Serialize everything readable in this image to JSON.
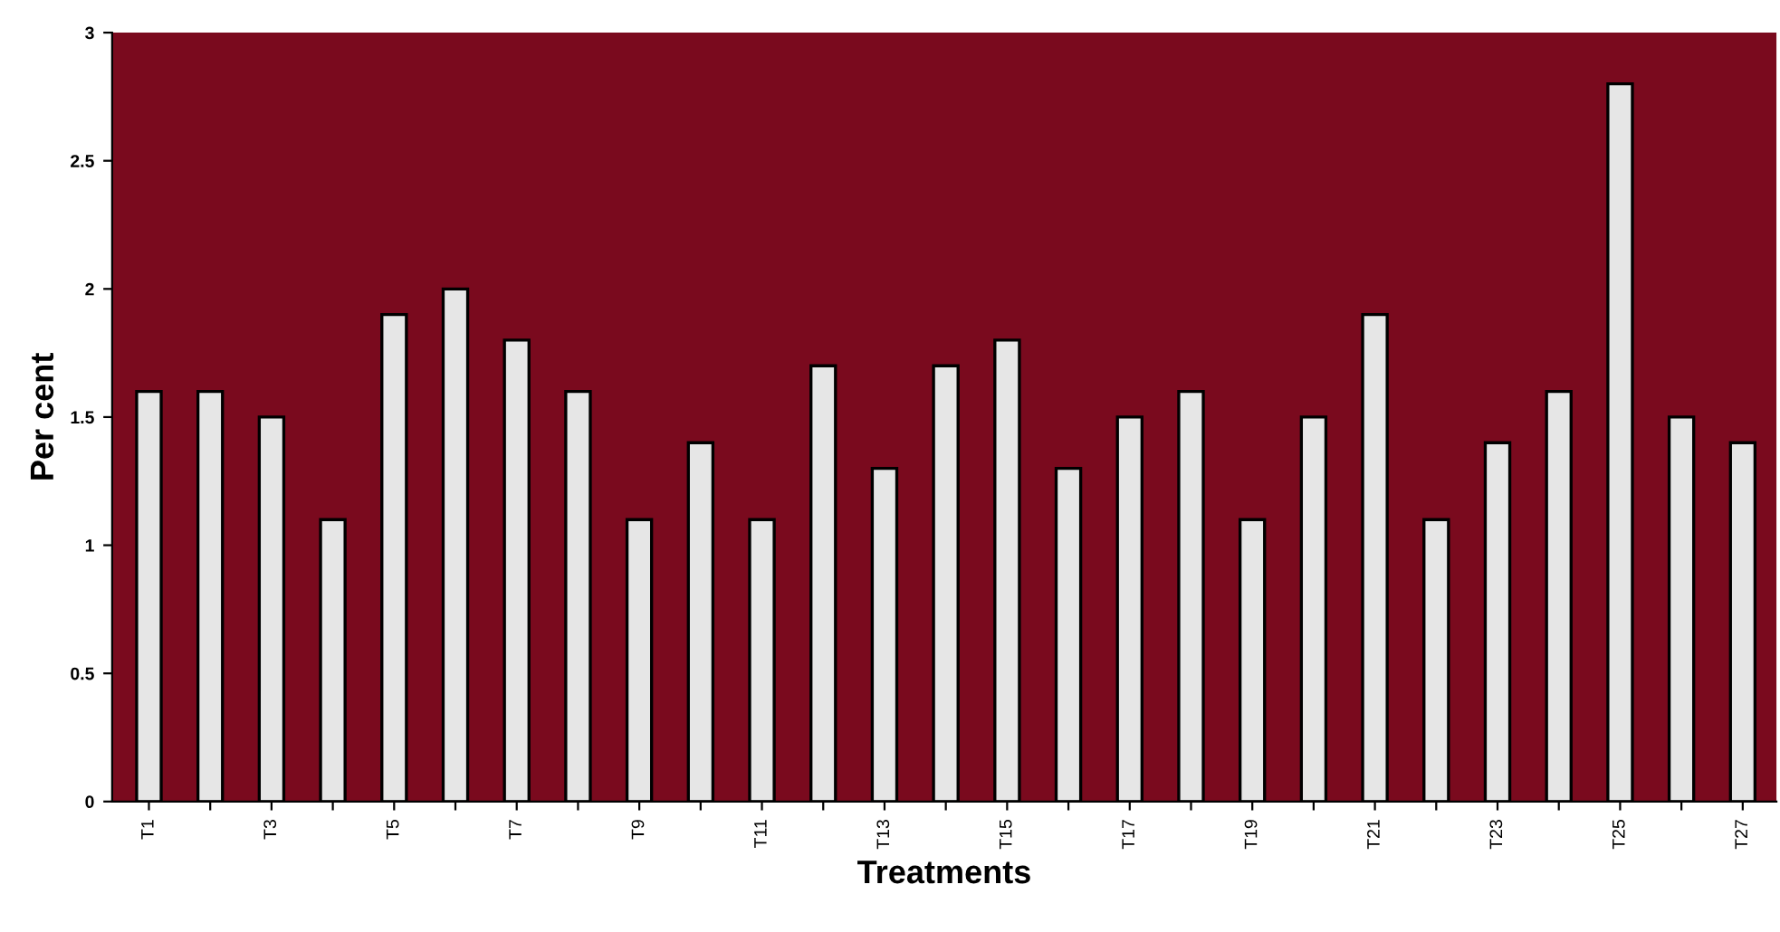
{
  "chart_data": {
    "type": "bar",
    "xlabel": "Treatments",
    "ylabel": "Per cent",
    "categories": [
      "T1",
      null,
      "T3",
      null,
      "T5",
      null,
      "T7",
      null,
      "T9",
      null,
      "T11",
      null,
      "T13",
      null,
      "T15",
      null,
      "T17",
      null,
      "T19",
      null,
      "T21",
      null,
      "T23",
      null,
      "T25",
      null,
      "T27"
    ],
    "values": [
      1.6,
      1.6,
      1.5,
      1.1,
      1.9,
      2.0,
      1.8,
      1.6,
      1.1,
      1.4,
      1.1,
      1.7,
      1.3,
      1.7,
      1.8,
      1.3,
      1.5,
      1.6,
      1.1,
      1.5,
      1.9,
      1.1,
      1.4,
      1.6,
      2.8,
      1.5,
      1.4
    ],
    "color": "#e6e6e6",
    "ylim": [
      0,
      3
    ],
    "yticks": [
      0,
      0.5,
      1,
      1.5,
      2,
      2.5,
      3
    ],
    "grid": false
  }
}
